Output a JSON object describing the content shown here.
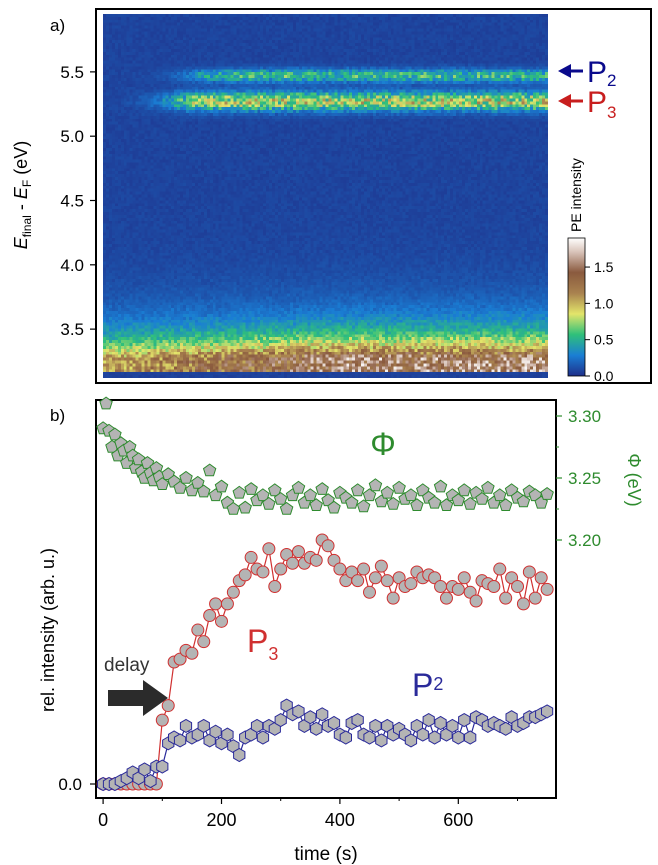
{
  "chart_data": [
    {
      "type": "heatmap",
      "panel_label": "a)",
      "ylabel": "E_final - E_F (eV)",
      "ylabel_parts": {
        "E1": "E",
        "sub1": "final",
        "mid": " - ",
        "E2": "E",
        "sub2": "F",
        "unit": " (eV)"
      },
      "xlim": [
        0,
        760
      ],
      "ylim": [
        3.12,
        5.95
      ],
      "yticks": [
        3.5,
        4.0,
        4.5,
        5.0,
        5.5
      ],
      "ytick_labels": [
        "3.5",
        "4.0",
        "4.5",
        "5.0",
        "5.5"
      ],
      "colorbar": {
        "label": "PE intensity",
        "range": [
          0.0,
          1.9
        ],
        "ticks": [
          0.0,
          0.5,
          1.0,
          1.5
        ],
        "tick_labels": [
          "0.0",
          "0.5",
          "1.0",
          "1.5"
        ]
      },
      "annotations": [
        {
          "label": "P",
          "sub": "2",
          "energy": 5.45,
          "color": "#0a0a8c"
        },
        {
          "label": "P",
          "sub": "3",
          "energy": 5.23,
          "color": "#c81e1e"
        }
      ],
      "bands": [
        {
          "name": "secondary edge",
          "energy": 3.28,
          "width": 0.17,
          "peak": 1.3
        },
        {
          "name": "P3",
          "energy": 5.27,
          "width": 0.07,
          "peak": 0.8,
          "onset_s": 120
        },
        {
          "name": "P2",
          "energy": 5.47,
          "width": 0.05,
          "peak": 0.5,
          "onset_s": 150
        }
      ]
    },
    {
      "type": "scatter",
      "panel_label": "b)",
      "xlabel": "time (s)",
      "ylabel": "rel. intensity (arb. u.)",
      "y2label": "Φ (eV)",
      "xlim": [
        -12,
        765
      ],
      "xticks": [
        0,
        200,
        400,
        600
      ],
      "xtick_labels": [
        "0",
        "200",
        "400",
        "600"
      ],
      "ylim": [
        -0.05,
        1.0
      ],
      "yticks": [
        0.0
      ],
      "ytick_labels": [
        "0.0"
      ],
      "y2lim": [
        3.16,
        3.31
      ],
      "y2ticks": [
        3.2,
        3.25,
        3.3
      ],
      "y2tick_labels": [
        "3.20",
        "3.25",
        "3.30"
      ],
      "labels": {
        "phi": "Φ",
        "p3": "P",
        "p3_sub": "3",
        "p2": "P",
        "p2_sub": "2",
        "delay": "delay"
      },
      "colors": {
        "phi": "#2e8b2e",
        "p3": "#d03030",
        "p2": "#2a2a9a",
        "marker_fill": "#b4b4b4",
        "arrow": "#2b2b2b"
      },
      "series": [
        {
          "name": "P3",
          "x": [
            0,
            10,
            20,
            30,
            40,
            50,
            60,
            70,
            80,
            90,
            100,
            110,
            120,
            130,
            140,
            150,
            160,
            170,
            180,
            190,
            200,
            210,
            220,
            230,
            240,
            250,
            260,
            270,
            280,
            290,
            300,
            310,
            320,
            330,
            340,
            350,
            360,
            370,
            380,
            390,
            400,
            410,
            420,
            430,
            440,
            450,
            460,
            470,
            480,
            490,
            500,
            510,
            520,
            530,
            540,
            550,
            560,
            570,
            580,
            590,
            600,
            610,
            620,
            630,
            640,
            650,
            660,
            670,
            680,
            690,
            700,
            710,
            720,
            730,
            740,
            750
          ],
          "values": [
            0,
            0,
            0,
            0,
            0,
            0,
            0,
            0,
            0,
            0,
            0.22,
            0.27,
            0.42,
            0.43,
            0.46,
            0.45,
            0.53,
            0.49,
            0.58,
            0.62,
            0.56,
            0.62,
            0.66,
            0.7,
            0.72,
            0.78,
            0.74,
            0.73,
            0.81,
            0.68,
            0.74,
            0.79,
            0.76,
            0.8,
            0.76,
            0.78,
            0.77,
            0.84,
            0.82,
            0.77,
            0.74,
            0.7,
            0.73,
            0.7,
            0.74,
            0.66,
            0.71,
            0.75,
            0.7,
            0.64,
            0.71,
            0.68,
            0.69,
            0.73,
            0.71,
            0.72,
            0.71,
            0.68,
            0.64,
            0.68,
            0.67,
            0.71,
            0.66,
            0.63,
            0.7,
            0.69,
            0.68,
            0.74,
            0.64,
            0.71,
            0.68,
            0.62,
            0.73,
            0.64,
            0.71,
            0.67
          ]
        },
        {
          "name": "P2",
          "x": [
            0,
            10,
            20,
            30,
            40,
            50,
            60,
            70,
            80,
            90,
            100,
            110,
            120,
            130,
            140,
            150,
            160,
            170,
            180,
            190,
            200,
            210,
            220,
            230,
            240,
            250,
            260,
            270,
            280,
            290,
            300,
            310,
            320,
            330,
            340,
            350,
            360,
            370,
            380,
            390,
            400,
            410,
            420,
            430,
            440,
            450,
            460,
            470,
            480,
            490,
            500,
            510,
            520,
            530,
            540,
            550,
            560,
            570,
            580,
            590,
            600,
            610,
            620,
            630,
            640,
            650,
            660,
            670,
            680,
            690,
            700,
            710,
            720,
            730,
            740,
            750
          ],
          "values": [
            0,
            0,
            0,
            0.01,
            0.02,
            0.04,
            0.02,
            0.05,
            0.01,
            0.06,
            0.06,
            0.14,
            0.16,
            0.15,
            0.2,
            0.16,
            0.17,
            0.2,
            0.15,
            0.18,
            0.14,
            0.17,
            0.13,
            0.1,
            0.16,
            0.17,
            0.2,
            0.16,
            0.2,
            0.19,
            0.22,
            0.27,
            0.24,
            0.25,
            0.2,
            0.23,
            0.19,
            0.24,
            0.2,
            0.21,
            0.17,
            0.16,
            0.21,
            0.22,
            0.17,
            0.16,
            0.2,
            0.15,
            0.2,
            0.17,
            0.19,
            0.17,
            0.15,
            0.2,
            0.17,
            0.22,
            0.16,
            0.21,
            0.17,
            0.2,
            0.16,
            0.22,
            0.16,
            0.23,
            0.22,
            0.2,
            0.21,
            0.2,
            0.19,
            0.23,
            0.2,
            0.21,
            0.23,
            0.23,
            0.24,
            0.25
          ]
        },
        {
          "name": "Φ",
          "axis": "right",
          "x": [
            0,
            5,
            10,
            15,
            20,
            25,
            30,
            35,
            40,
            45,
            50,
            55,
            60,
            65,
            70,
            75,
            80,
            85,
            90,
            95,
            100,
            110,
            120,
            130,
            140,
            150,
            160,
            170,
            180,
            190,
            200,
            210,
            220,
            230,
            240,
            250,
            260,
            270,
            280,
            290,
            300,
            310,
            320,
            330,
            340,
            350,
            360,
            370,
            380,
            390,
            400,
            410,
            420,
            430,
            440,
            450,
            460,
            470,
            480,
            490,
            500,
            510,
            520,
            530,
            540,
            550,
            560,
            570,
            580,
            590,
            600,
            610,
            620,
            630,
            640,
            650,
            660,
            670,
            680,
            690,
            700,
            710,
            720,
            730,
            740,
            750
          ],
          "values": [
            3.29,
            3.31,
            3.288,
            3.275,
            3.285,
            3.268,
            3.278,
            3.272,
            3.262,
            3.275,
            3.268,
            3.258,
            3.265,
            3.255,
            3.25,
            3.262,
            3.254,
            3.248,
            3.258,
            3.251,
            3.245,
            3.253,
            3.247,
            3.242,
            3.25,
            3.24,
            3.246,
            3.239,
            3.256,
            3.236,
            3.243,
            3.23,
            3.225,
            3.238,
            3.226,
            3.241,
            3.232,
            3.236,
            3.229,
            3.24,
            3.233,
            3.225,
            3.236,
            3.242,
            3.23,
            3.236,
            3.228,
            3.241,
            3.232,
            3.226,
            3.238,
            3.234,
            3.23,
            3.24,
            3.227,
            3.236,
            3.244,
            3.231,
            3.238,
            3.229,
            3.242,
            3.233,
            3.236,
            3.228,
            3.24,
            3.234,
            3.23,
            3.243,
            3.228,
            3.236,
            3.232,
            3.24,
            3.229,
            3.238,
            3.233,
            3.242,
            3.23,
            3.236,
            3.228,
            3.24,
            3.234,
            3.231,
            3.239,
            3.236,
            3.23,
            3.237
          ]
        }
      ]
    }
  ]
}
